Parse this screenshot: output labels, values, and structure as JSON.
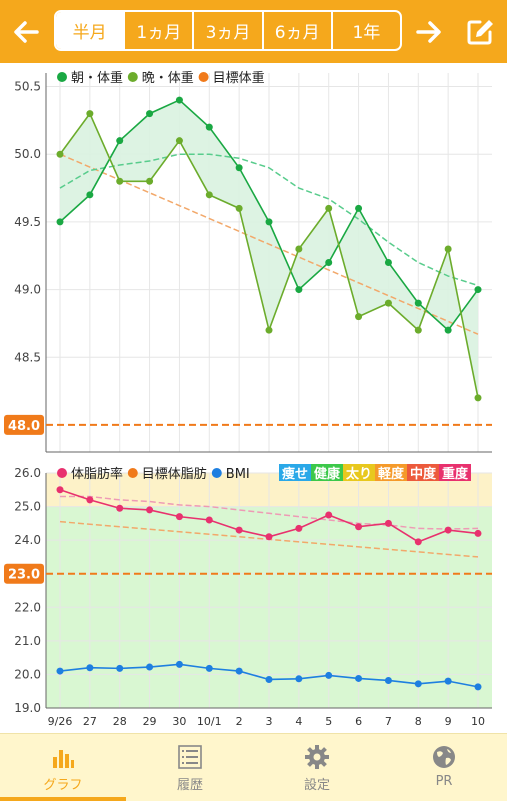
{
  "header": {
    "back_icon": "arrow-left-icon",
    "forward_icon": "arrow-right-icon",
    "edit_icon": "edit-icon",
    "tabs": [
      {
        "label": "半月",
        "active": true
      },
      {
        "label": "1ヵ月",
        "active": false
      },
      {
        "label": "3ヵ月",
        "active": false
      },
      {
        "label": "6ヵ月",
        "active": false
      },
      {
        "label": "1年",
        "active": false
      }
    ],
    "accent": "#f5a81c"
  },
  "chart_data": [
    {
      "type": "line",
      "x": [
        "9/26",
        "27",
        "28",
        "29",
        "30",
        "10/1",
        "2",
        "3",
        "4",
        "5",
        "6",
        "7",
        "8",
        "9",
        "10"
      ],
      "ylim": [
        47.8,
        50.6
      ],
      "yticks": [
        "50.5",
        "50.0",
        "49.5",
        "49.0",
        "48.5"
      ],
      "yticks_values": [
        50.5,
        50.0,
        49.5,
        49.0,
        48.5
      ],
      "legend": [
        {
          "name": "朝・体重",
          "color": "#1aa843"
        },
        {
          "name": "晩・体重",
          "color": "#6cac2c"
        },
        {
          "name": "目標体重",
          "color": "#f07a1a"
        }
      ],
      "series": [
        {
          "name": "朝・体重",
          "color": "#1aa843",
          "values": [
            49.5,
            49.7,
            50.1,
            50.3,
            50.4,
            50.2,
            49.9,
            49.5,
            49.0,
            49.2,
            49.6,
            49.2,
            48.9,
            48.7,
            49.0
          ]
        },
        {
          "name": "晩・体重",
          "color": "#6cac2c",
          "values": [
            50.0,
            50.3,
            49.8,
            49.8,
            50.1,
            49.7,
            49.6,
            48.7,
            49.3,
            49.6,
            48.8,
            48.9,
            48.7,
            49.3,
            48.2
          ]
        }
      ],
      "trend": {
        "color": "#58cc8c",
        "values": [
          49.75,
          49.88,
          49.92,
          49.95,
          50.0,
          50.0,
          49.97,
          49.9,
          49.75,
          49.67,
          49.52,
          49.35,
          49.2,
          49.1,
          49.03
        ]
      },
      "target_trend": {
        "color": "#f2a86a",
        "from": 50.0,
        "to": 48.67
      },
      "target": {
        "value": 48.0,
        "label": "48.0",
        "color": "#f07a1a"
      }
    },
    {
      "type": "line",
      "x": [
        "9/26",
        "27",
        "28",
        "29",
        "30",
        "10/1",
        "2",
        "3",
        "4",
        "5",
        "6",
        "7",
        "8",
        "9",
        "10"
      ],
      "ylim": [
        19.0,
        26.0
      ],
      "yticks": [
        "26.0",
        "25.0",
        "24.0",
        "23.0",
        "22.0",
        "21.0",
        "20.0",
        "19.0"
      ],
      "yticks_values": [
        26,
        25,
        24,
        23,
        22,
        21,
        20,
        19
      ],
      "legend": [
        {
          "name": "体脂肪率",
          "color": "#e8316e"
        },
        {
          "name": "目標体脂肪",
          "color": "#f07a1a"
        },
        {
          "name": "BMI",
          "color": "#1e7fe0"
        }
      ],
      "category_labels": [
        {
          "label": "痩せ",
          "color": "#2aa8e8"
        },
        {
          "label": "健康",
          "color": "#3cc84a"
        },
        {
          "label": "太り",
          "color": "#e8c81e"
        },
        {
          "label": "軽度",
          "color": "#f59a2a"
        },
        {
          "label": "中度",
          "color": "#ec5a3c"
        },
        {
          "label": "重度",
          "color": "#e8316e"
        }
      ],
      "bands": [
        {
          "from": 19.0,
          "to": 25.0,
          "color": "#d9f7d2"
        },
        {
          "from": 25.0,
          "to": 26.0,
          "color": "#fdf2c8"
        }
      ],
      "series": [
        {
          "name": "体脂肪率",
          "color": "#e8316e",
          "values": [
            25.5,
            25.2,
            24.95,
            24.9,
            24.7,
            24.6,
            24.3,
            24.1,
            24.35,
            24.75,
            24.4,
            24.5,
            23.95,
            24.3,
            24.2
          ]
        },
        {
          "name": "BMI",
          "color": "#1e7fe0",
          "values": [
            20.1,
            20.2,
            20.18,
            20.22,
            20.3,
            20.18,
            20.1,
            19.85,
            19.87,
            19.97,
            19.88,
            19.82,
            19.72,
            19.8,
            19.63
          ]
        }
      ],
      "trend": {
        "color": "#ee9ab5",
        "values": [
          25.3,
          25.3,
          25.2,
          25.15,
          25.05,
          25.0,
          24.9,
          24.8,
          24.7,
          24.6,
          24.5,
          24.45,
          24.35,
          24.33,
          24.35
        ]
      },
      "target_trend": {
        "color": "#f2a86a",
        "from": 24.55,
        "to": 23.5
      },
      "target": {
        "value": 23.0,
        "label": "23.0",
        "color": "#f07a1a"
      }
    }
  ],
  "bottom_nav": [
    {
      "label": "グラフ",
      "icon": "bar-chart-icon",
      "active": true
    },
    {
      "label": "履歴",
      "icon": "list-icon",
      "active": false
    },
    {
      "label": "設定",
      "icon": "gear-icon",
      "active": false
    },
    {
      "label": "PR",
      "icon": "globe-icon",
      "active": false
    }
  ]
}
